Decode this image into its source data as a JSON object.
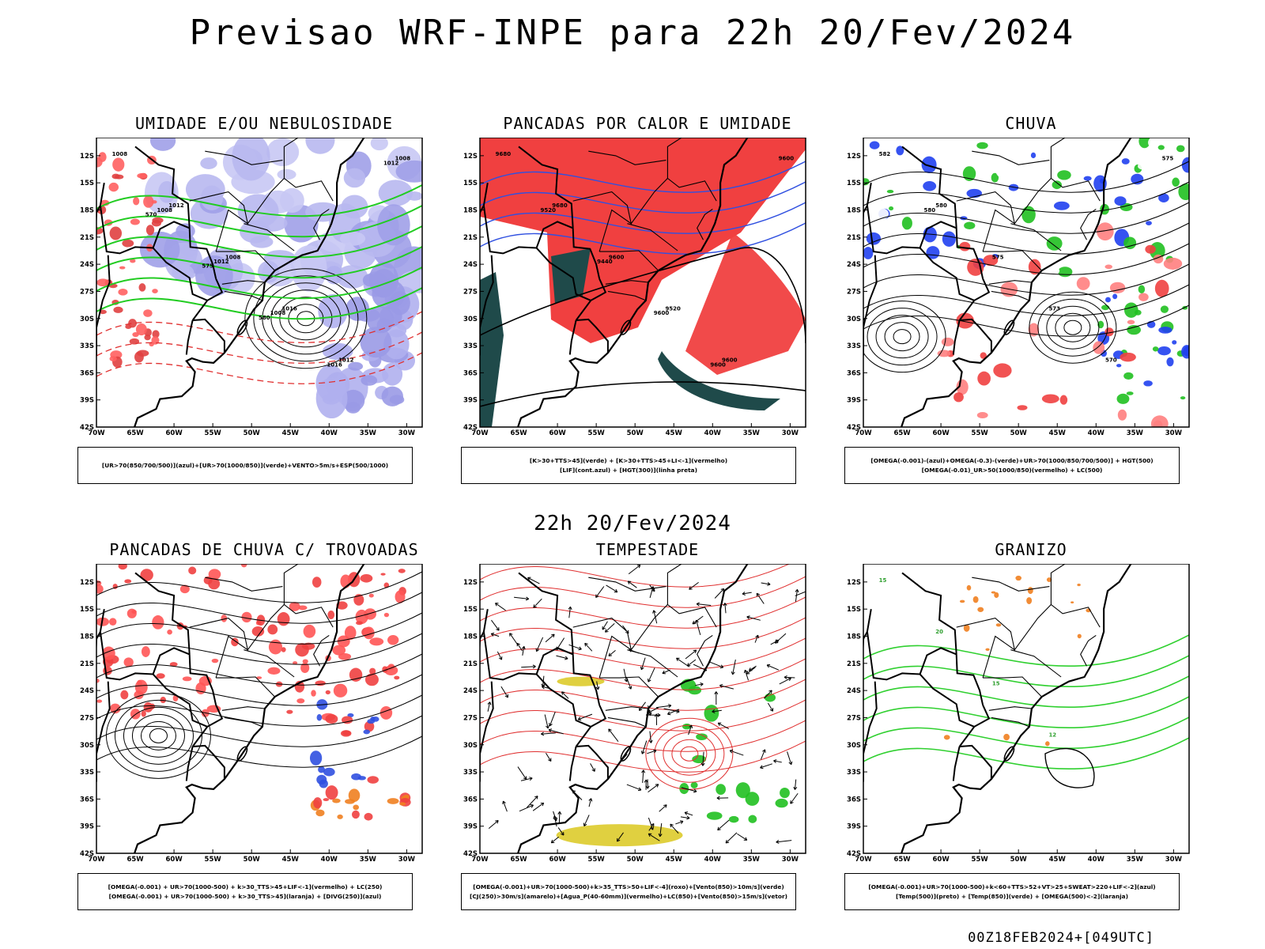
{
  "page": {
    "title": "Previsao WRF-INPE  para 22h 20/Fev/2024",
    "mid_title": "22h 20/Fev/2024",
    "footer": "00Z18FEB2024+[049UTC]"
  },
  "axes": {
    "lat_ticks": [
      "12S",
      "15S",
      "18S",
      "21S",
      "24S",
      "27S",
      "30S",
      "33S",
      "36S",
      "39S",
      "42S"
    ],
    "lon_ticks": [
      "70W",
      "65W",
      "60W",
      "55W",
      "50W",
      "45W",
      "40W",
      "35W",
      "30W"
    ],
    "lat_range": [
      -42,
      -10
    ],
    "lon_range": [
      -70,
      -28
    ]
  },
  "panels": [
    {
      "id": "umidade",
      "title": "UMIDADE E/OU NEBULOSIDADE",
      "legend": [
        "[UR>70(850/700/500)](azul)+[UR>70(1000/850)](verde)+VENTO>5m/s+ESP(500/1000)"
      ],
      "contour_labels": [
        "1008",
        "1012",
        "1008",
        "1016",
        "1012",
        "1008",
        "1008",
        "1012",
        "1008",
        "1016",
        "1012",
        "570",
        "575",
        "580"
      ]
    },
    {
      "id": "pancadas_calor",
      "title": "PANCADAS POR CALOR E UMIDADE",
      "legend": [
        "[K>30+TTS>45](verde) + [K>30+TTS>45+LI<-1](vermelho)",
        "[LIF](cont.azul) + [HGT(300)](linha preta)"
      ],
      "contour_labels": [
        "9680",
        "9680",
        "9600",
        "9520",
        "9600",
        "9600",
        "9520",
        "9440",
        "9600",
        "9600"
      ]
    },
    {
      "id": "chuva",
      "title": "CHUVA",
      "legend": [
        "[OMEGA(-0.001)-(azul)+OMEGA(-0.3)-(verde)+UR>70(1000/850/700/500)] + HGT(500)",
        "[OMEGA(-0.01)_UR>50(1000/850)(vermelho) + LC(500)"
      ],
      "contour_labels": [
        "582",
        "580",
        "575",
        "573",
        "570",
        "575",
        "580"
      ]
    },
    {
      "id": "trovoadas",
      "title": "PANCADAS DE CHUVA C/ TROVOADAS",
      "legend": [
        "[OMEGA(-0.001) + UR>70(1000-500) + k>30_TTS>45+LIF<-1](vermelho) + LC(250)",
        "[OMEGA(-0.001) + UR>70(1000-500) + k>30_TTS>45](laranja) + [DIVG(250)](azul)"
      ]
    },
    {
      "id": "tempestade",
      "title": "TEMPESTADE",
      "legend": [
        "[OMEGA(-0.001)+UR>70(1000-500)+k>35_TTS>50+LIF<-4](roxo)+[Vento(850)>10m/s](verde)",
        "[CJ(250)>30m/s](amarelo)+[Agua_P(40-60mm)](vermelho)+LC(850)+[Vento(850)>15m/s](vetor)"
      ]
    },
    {
      "id": "granizo",
      "title": "GRANIZO",
      "legend": [
        "[OMEGA(-0.001)+UR>70(1000-500)+k<60+TTS>52+VT>25+SWEAT>220+LIF<-2](azul)",
        "[Temp(500)](preto) + [Temp(850)](verde) + [OMEGA(500)<-2](laranja)"
      ],
      "contour_labels": [
        "15",
        "20",
        "15",
        "12"
      ]
    }
  ]
}
